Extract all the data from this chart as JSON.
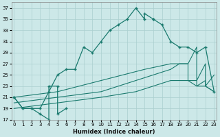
{
  "xlabel": "Humidex (Indice chaleur)",
  "bg_color": "#cce8e8",
  "grid_color": "#aacfcf",
  "line_color": "#1a7a6e",
  "xlim": [
    -0.3,
    23.3
  ],
  "ylim": [
    17,
    38
  ],
  "yticks": [
    17,
    19,
    21,
    23,
    25,
    27,
    29,
    31,
    33,
    35,
    37
  ],
  "xticks": [
    0,
    1,
    2,
    3,
    4,
    5,
    6,
    7,
    8,
    9,
    10,
    11,
    12,
    13,
    14,
    15,
    16,
    17,
    18,
    19,
    20,
    21,
    22,
    23
  ],
  "curve_main_x": [
    0,
    1,
    2,
    3,
    4,
    5,
    6,
    7,
    8,
    9,
    10,
    11,
    12,
    13,
    14,
    15,
    15,
    16,
    16,
    17,
    18,
    19,
    20,
    21,
    22,
    23
  ],
  "curve_main_y": [
    21,
    19,
    19,
    19,
    22,
    25,
    26,
    26,
    30,
    29,
    31,
    33,
    34,
    35,
    37,
    35,
    36,
    35,
    35,
    34,
    31,
    30,
    30,
    29,
    30,
    22
  ],
  "curve_upper_x": [
    0,
    5,
    10,
    15,
    18,
    19,
    20,
    21,
    21,
    22,
    22,
    23
  ],
  "curve_upper_y": [
    21,
    22,
    24,
    26,
    27,
    27,
    27,
    30,
    24,
    27,
    23,
    25
  ],
  "curve_mid_x": [
    0,
    5,
    10,
    14,
    18,
    19,
    20,
    20,
    21,
    21,
    22,
    22,
    23
  ],
  "curve_mid_y": [
    20,
    21,
    22,
    24,
    26,
    27,
    27,
    24,
    24,
    23,
    24,
    23,
    22
  ],
  "curve_low_x": [
    0,
    5,
    10,
    14,
    18,
    19,
    20,
    21,
    22,
    23
  ],
  "curve_low_y": [
    19,
    20,
    21,
    22,
    24,
    24,
    24,
    23,
    23,
    22
  ],
  "left_zigzag_x": [
    0,
    1,
    2,
    3,
    4,
    4,
    5,
    5,
    6
  ],
  "left_zigzag_y": [
    21,
    19,
    19,
    18,
    17,
    23,
    23,
    18,
    19
  ]
}
